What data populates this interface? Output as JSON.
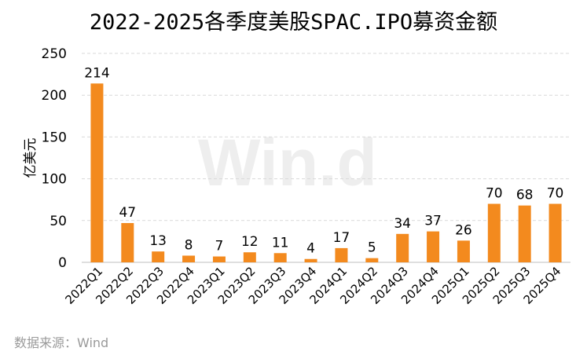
{
  "watermark": "Win.d",
  "source": "数据来源：Wind",
  "colors": {
    "bar": "#F38A1E",
    "grid": "#d9d9d9"
  },
  "chart_data": {
    "type": "bar",
    "title": "2022-2025各季度美股SPAC.IPO募资金额",
    "xlabel": "",
    "ylabel": "亿美元",
    "ylim": [
      0,
      250
    ],
    "yticks": [
      0,
      50,
      100,
      150,
      200,
      250
    ],
    "grid": true,
    "categories": [
      "2022Q1",
      "2022Q2",
      "2022Q3",
      "2022Q4",
      "2023Q1",
      "2023Q2",
      "2023Q3",
      "2023Q4",
      "2024Q1",
      "2024Q2",
      "2024Q3",
      "2024Q4",
      "2025Q1",
      "2025Q2",
      "2025Q3",
      "2025Q4"
    ],
    "values": [
      214,
      47,
      13,
      8,
      7,
      12,
      11,
      4,
      17,
      5,
      34,
      37,
      26,
      70,
      68,
      70
    ]
  }
}
